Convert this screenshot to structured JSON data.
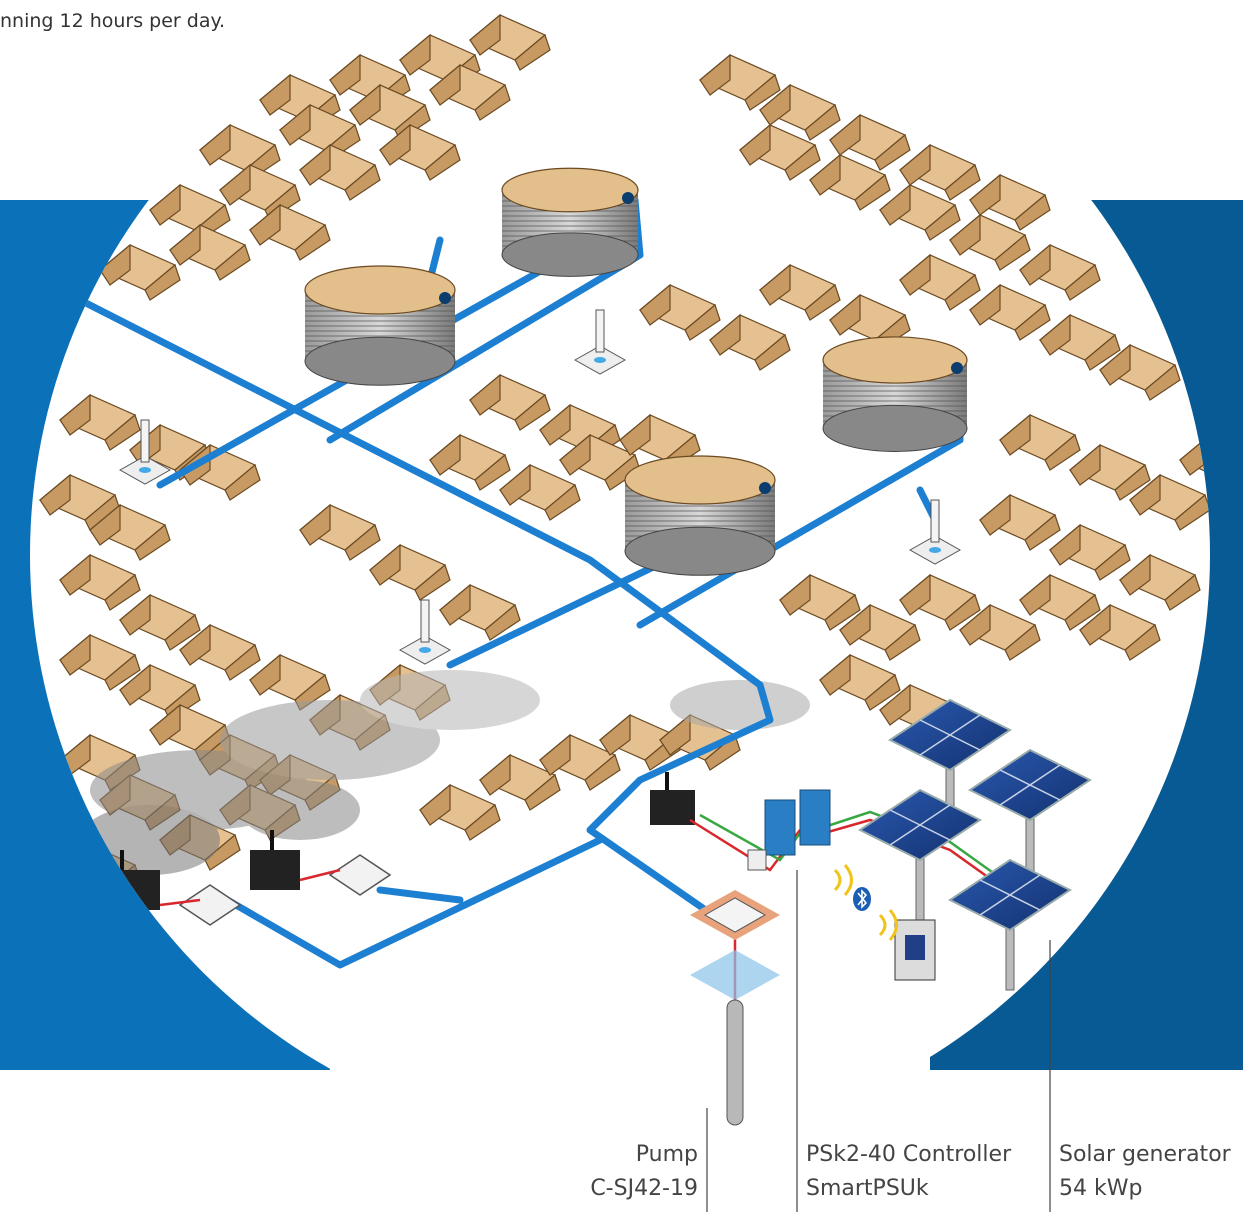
{
  "caption": "nning 12 hours per day.",
  "colors": {
    "panel_blue": "#0b71b9",
    "panel_blue_dark": "#075a93",
    "pipe_blue": "#1c7fd2",
    "tent": "#e5c090",
    "tent_shade": "#c79a63",
    "tank_top": "#e3bf8c",
    "cable_red": "#d9272e",
    "cable_green": "#39a843",
    "solar_panel": "#1f3f86"
  },
  "labels": {
    "pump": {
      "line1": "Pump",
      "line2": "C-SJ42-19"
    },
    "controller": {
      "line1": "PSk2-40 Controller",
      "line2": "SmartPSUk"
    },
    "solar": {
      "line1": "Solar generator",
      "line2": "54 kWp"
    }
  },
  "icons": {
    "bluetooth": "bluetooth-icon",
    "wireless": "wireless-signal-icon"
  }
}
